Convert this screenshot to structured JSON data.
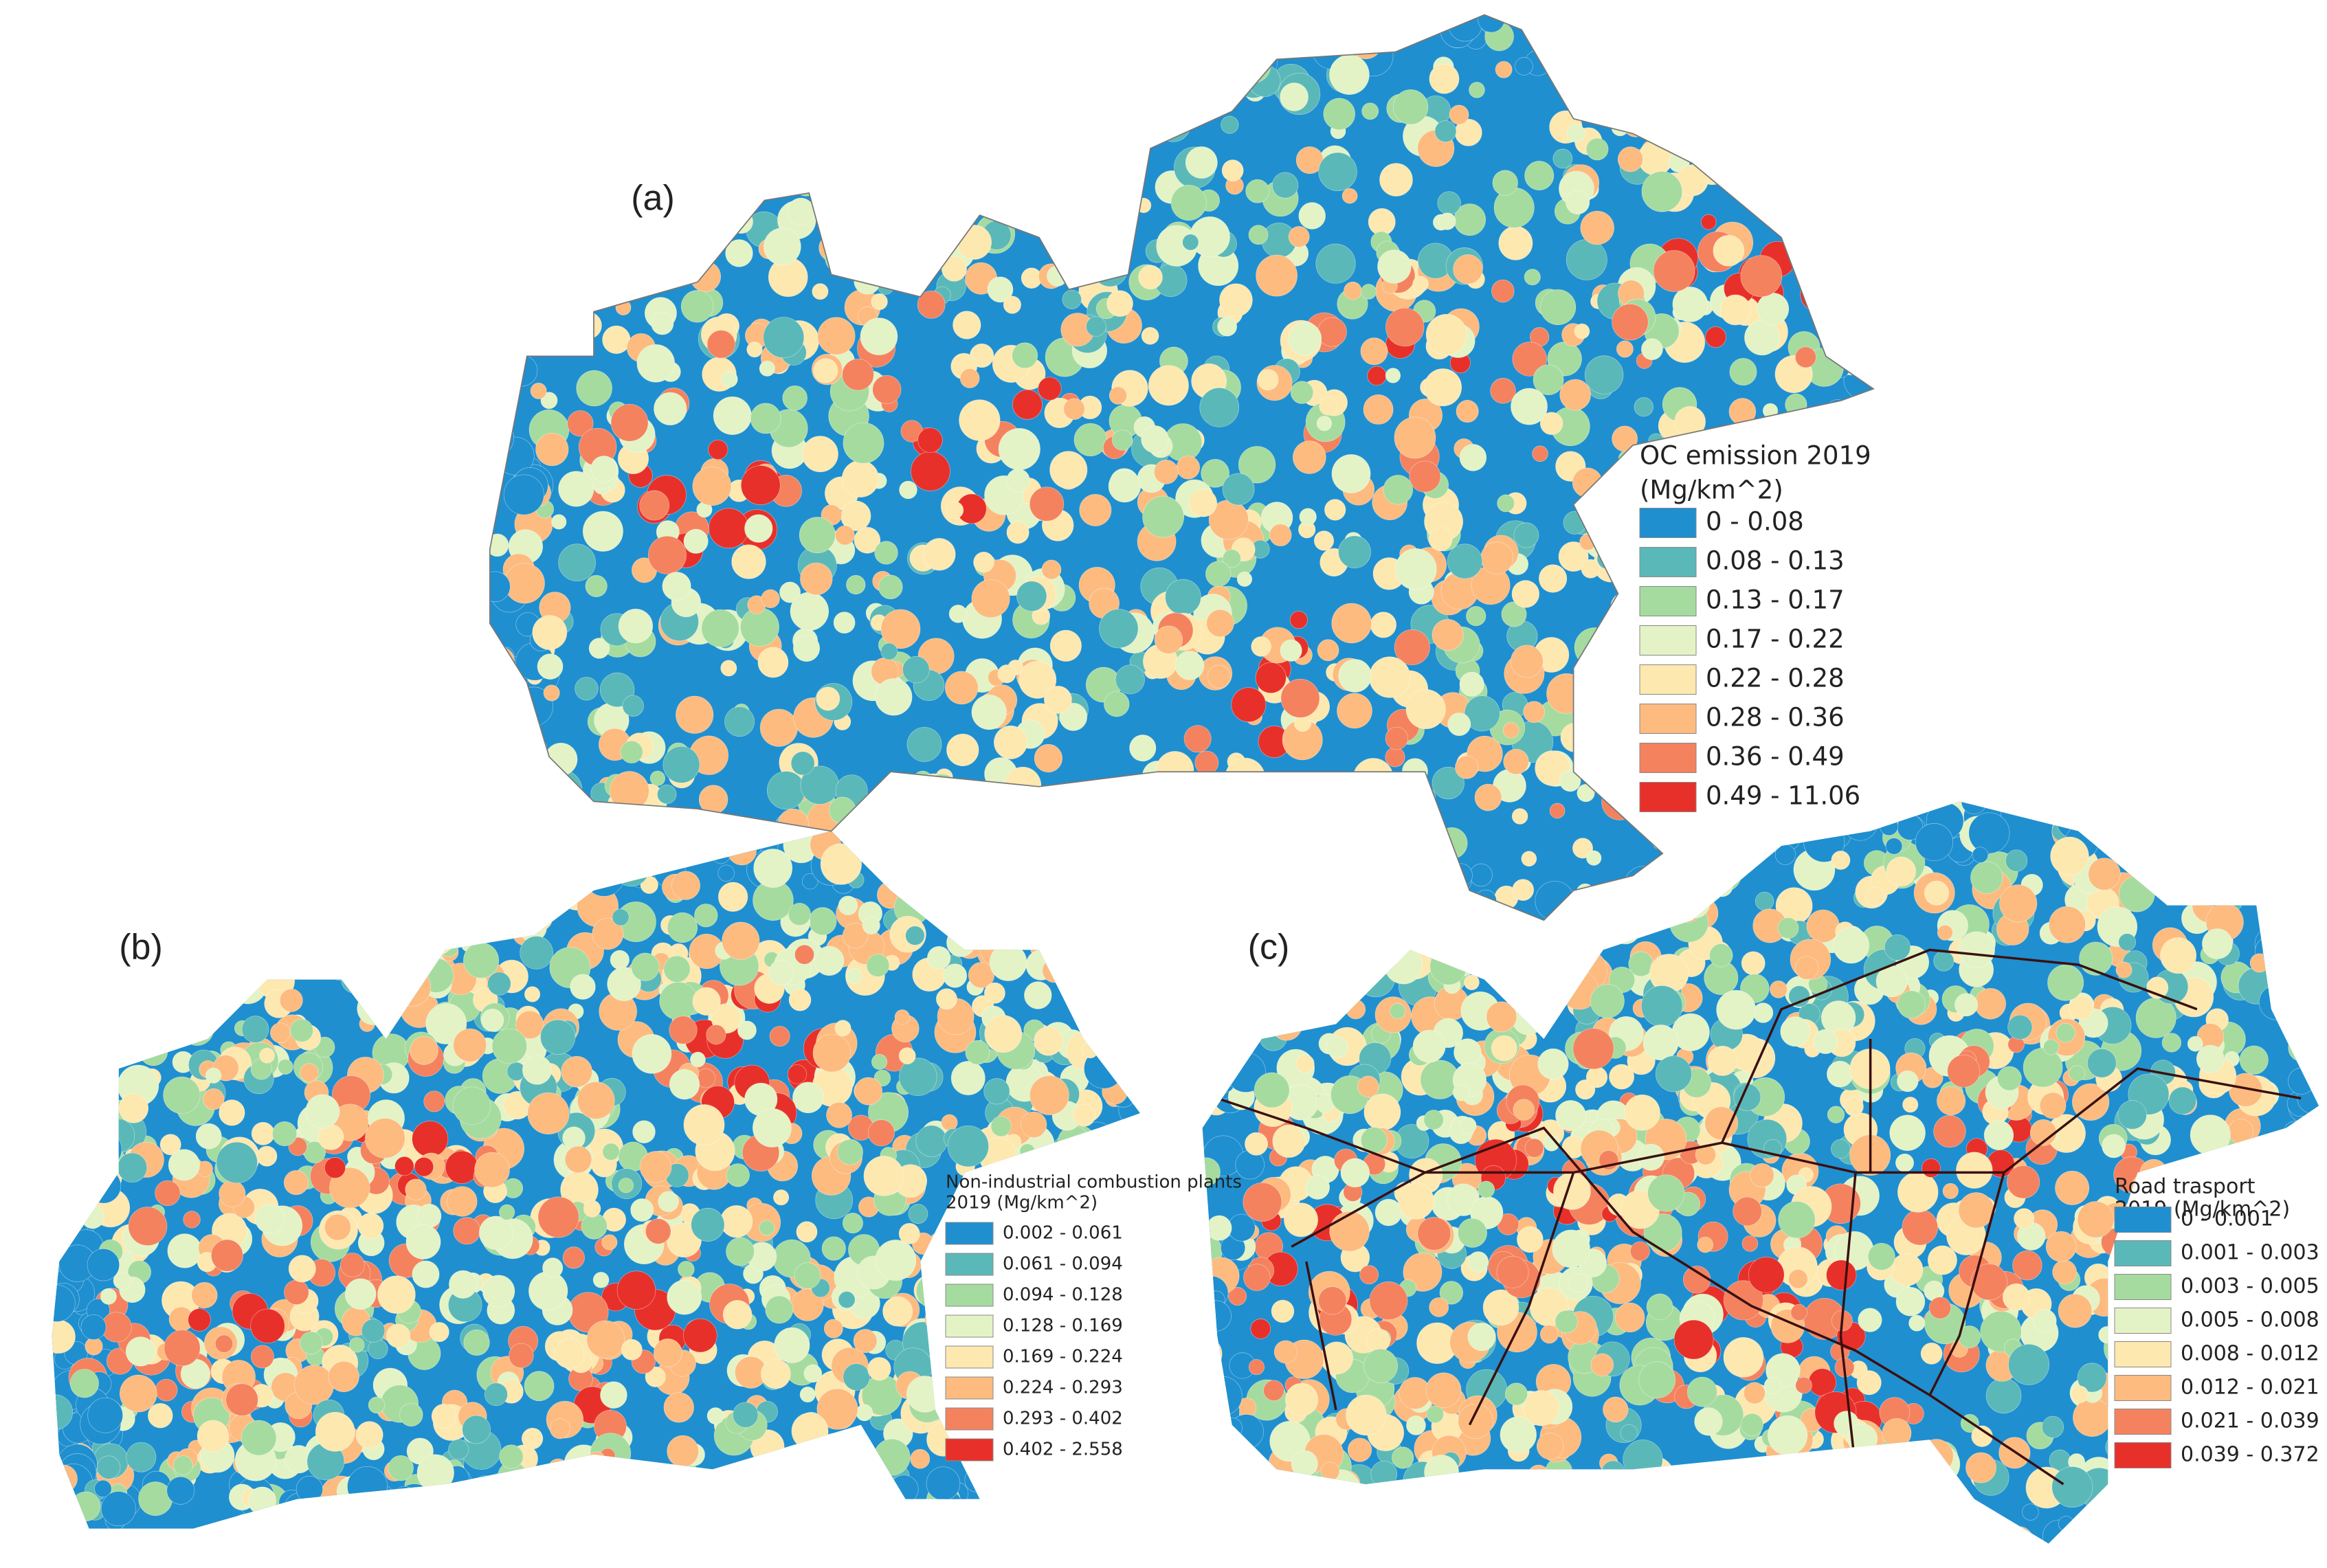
{
  "panels": [
    {
      "label": "(a)",
      "legend": {
        "title": [
          "OC emission 2019",
          "(Mg/km^2)"
        ],
        "classes": [
          {
            "label": "0 - 0.08",
            "color": "#1f8fcf"
          },
          {
            "label": "0.08 - 0.13",
            "color": "#5bb8b8"
          },
          {
            "label": "0.13 - 0.17",
            "color": "#a6dba0"
          },
          {
            "label": "0.17 - 0.22",
            "color": "#e3f3c6"
          },
          {
            "label": "0.22 - 0.28",
            "color": "#fde8b0"
          },
          {
            "label": "0.28 - 0.36",
            "color": "#fdbb80"
          },
          {
            "label": "0.36 - 0.49",
            "color": "#f4825f"
          },
          {
            "label": "0.49 - 11.06",
            "color": "#e8302a"
          }
        ]
      }
    },
    {
      "label": "(b)",
      "legend": {
        "title": [
          "Non-industrial combustion plants",
          "2019 (Mg/km^2)"
        ],
        "classes": [
          {
            "label": "0.002 - 0.061",
            "color": "#1f8fcf"
          },
          {
            "label": "0.061 - 0.094",
            "color": "#5bb8b8"
          },
          {
            "label": "0.094 - 0.128",
            "color": "#a6dba0"
          },
          {
            "label": "0.128 - 0.169",
            "color": "#e3f3c6"
          },
          {
            "label": "0.169 - 0.224",
            "color": "#fde8b0"
          },
          {
            "label": "0.224 - 0.293",
            "color": "#fdbb80"
          },
          {
            "label": "0.293 - 0.402",
            "color": "#f4825f"
          },
          {
            "label": "0.402 - 2.558",
            "color": "#e8302a"
          }
        ]
      }
    },
    {
      "label": "(c)",
      "legend": {
        "title": [
          "Road trasport",
          "2019 (Mg/km^2)"
        ],
        "classes": [
          {
            "label": "0 - 0.001",
            "color": "#1f8fcf"
          },
          {
            "label": "0.001 - 0.003",
            "color": "#5bb8b8"
          },
          {
            "label": "0.003 - 0.005",
            "color": "#a6dba0"
          },
          {
            "label": "0.005 - 0.008",
            "color": "#e3f3c6"
          },
          {
            "label": "0.008 - 0.012",
            "color": "#fde8b0"
          },
          {
            "label": "0.012 - 0.021",
            "color": "#fdbb80"
          },
          {
            "label": "0.021 - 0.039",
            "color": "#f4825f"
          },
          {
            "label": "0.039 - 0.372",
            "color": "#e8302a"
          }
        ]
      }
    }
  ]
}
